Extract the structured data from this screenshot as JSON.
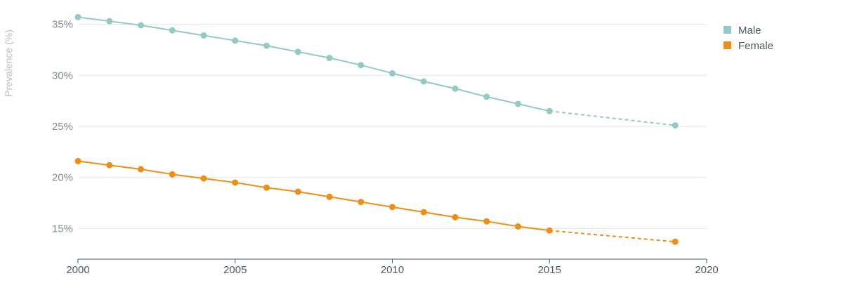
{
  "chart_data": {
    "type": "line",
    "title": "",
    "xlabel": "",
    "ylabel": "Prevalence (%)",
    "xlim": [
      2000,
      2020
    ],
    "ylim": [
      12,
      36
    ],
    "x_ticks": [
      2000,
      2005,
      2010,
      2015,
      2020
    ],
    "x_tick_labels": [
      "2000",
      "2005",
      "2010",
      "2015",
      "2020"
    ],
    "y_ticks": [
      15,
      20,
      25,
      30,
      35
    ],
    "y_tick_labels": [
      "15%",
      "20%",
      "25%",
      "30%",
      "35%"
    ],
    "grid": "horizontal",
    "legend_position": "top-right",
    "series": [
      {
        "name": "Male",
        "color": "#93c9c6",
        "x": [
          2000,
          2001,
          2002,
          2003,
          2004,
          2005,
          2006,
          2007,
          2008,
          2009,
          2010,
          2011,
          2012,
          2013,
          2014,
          2015,
          2019
        ],
        "values": [
          35.7,
          35.3,
          34.9,
          34.4,
          33.9,
          33.4,
          32.9,
          32.3,
          31.7,
          31.0,
          30.2,
          29.4,
          28.7,
          27.9,
          27.2,
          26.5,
          25.1
        ],
        "projected_from_index": 15
      },
      {
        "name": "Female",
        "color": "#ef8e14",
        "x": [
          2000,
          2001,
          2002,
          2003,
          2004,
          2005,
          2006,
          2007,
          2008,
          2009,
          2010,
          2011,
          2012,
          2013,
          2014,
          2015,
          2019
        ],
        "values": [
          21.6,
          21.2,
          20.8,
          20.3,
          19.9,
          19.5,
          19.0,
          18.6,
          18.1,
          17.6,
          17.1,
          16.6,
          16.1,
          15.7,
          15.2,
          14.8,
          13.7
        ],
        "projected_from_index": 15
      }
    ]
  }
}
